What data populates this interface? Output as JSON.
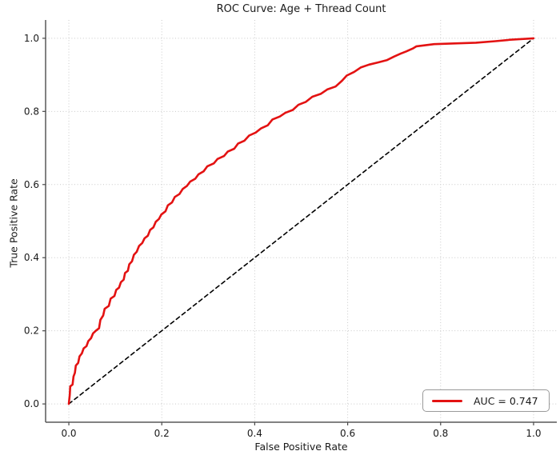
{
  "figure": {
    "background": "#ffffff"
  },
  "colors": {
    "spine": "#595959",
    "tick": "#4a4a4a",
    "text": "#1a1a1a",
    "grid": "#c9c9c9",
    "legend_border": "#9a9a9a"
  },
  "chart_data": {
    "type": "line",
    "title": "ROC Curve: Age + Thread Count",
    "xlabel": "False Positive Rate",
    "ylabel": "True Positive Rate",
    "xlim": [
      -0.05,
      1.05
    ],
    "ylim": [
      -0.05,
      1.05
    ],
    "xticks": [
      0,
      0.2,
      0.4,
      0.6,
      0.8,
      1.0
    ],
    "xtick_labels": [
      "0.0",
      "0.2",
      "0.4",
      "0.6",
      "0.8",
      "1.0"
    ],
    "yticks": [
      0,
      0.2,
      0.4,
      0.6,
      0.8,
      1.0
    ],
    "ytick_labels": [
      "0.0",
      "0.2",
      "0.4",
      "0.6",
      "0.8",
      "1.0"
    ],
    "grid": {
      "on": true,
      "linestyle": "dotted",
      "color": "#c9c9c9"
    },
    "auc": 0.747,
    "legend": {
      "position": "lower-right",
      "entries": [
        {
          "label": "AUC = 0.747",
          "color": "#e31212",
          "linestyle": "solid"
        }
      ]
    },
    "series": [
      {
        "name": "roc-curve",
        "color": "#e31212",
        "linestyle": "solid",
        "linewidth": 2.6,
        "points": [
          [
            0.0,
            0.0
          ],
          [
            0.002,
            0.025
          ],
          [
            0.003,
            0.048
          ],
          [
            0.008,
            0.053
          ],
          [
            0.01,
            0.075
          ],
          [
            0.013,
            0.085
          ],
          [
            0.015,
            0.105
          ],
          [
            0.02,
            0.112
          ],
          [
            0.023,
            0.13
          ],
          [
            0.028,
            0.138
          ],
          [
            0.032,
            0.152
          ],
          [
            0.038,
            0.158
          ],
          [
            0.042,
            0.172
          ],
          [
            0.048,
            0.18
          ],
          [
            0.052,
            0.193
          ],
          [
            0.058,
            0.2
          ],
          [
            0.065,
            0.207
          ],
          [
            0.068,
            0.23
          ],
          [
            0.074,
            0.242
          ],
          [
            0.077,
            0.26
          ],
          [
            0.086,
            0.268
          ],
          [
            0.09,
            0.288
          ],
          [
            0.098,
            0.295
          ],
          [
            0.102,
            0.312
          ],
          [
            0.108,
            0.318
          ],
          [
            0.112,
            0.333
          ],
          [
            0.118,
            0.34
          ],
          [
            0.121,
            0.358
          ],
          [
            0.127,
            0.364
          ],
          [
            0.13,
            0.382
          ],
          [
            0.136,
            0.39
          ],
          [
            0.14,
            0.408
          ],
          [
            0.146,
            0.416
          ],
          [
            0.151,
            0.432
          ],
          [
            0.158,
            0.44
          ],
          [
            0.163,
            0.453
          ],
          [
            0.17,
            0.46
          ],
          [
            0.175,
            0.476
          ],
          [
            0.182,
            0.483
          ],
          [
            0.187,
            0.498
          ],
          [
            0.194,
            0.506
          ],
          [
            0.199,
            0.518
          ],
          [
            0.208,
            0.527
          ],
          [
            0.213,
            0.543
          ],
          [
            0.222,
            0.551
          ],
          [
            0.228,
            0.566
          ],
          [
            0.238,
            0.574
          ],
          [
            0.245,
            0.588
          ],
          [
            0.254,
            0.596
          ],
          [
            0.261,
            0.608
          ],
          [
            0.272,
            0.616
          ],
          [
            0.279,
            0.628
          ],
          [
            0.29,
            0.636
          ],
          [
            0.298,
            0.65
          ],
          [
            0.312,
            0.658
          ],
          [
            0.32,
            0.67
          ],
          [
            0.334,
            0.678
          ],
          [
            0.342,
            0.69
          ],
          [
            0.356,
            0.698
          ],
          [
            0.364,
            0.712
          ],
          [
            0.378,
            0.72
          ],
          [
            0.388,
            0.734
          ],
          [
            0.402,
            0.742
          ],
          [
            0.414,
            0.754
          ],
          [
            0.428,
            0.762
          ],
          [
            0.438,
            0.778
          ],
          [
            0.454,
            0.786
          ],
          [
            0.466,
            0.796
          ],
          [
            0.482,
            0.804
          ],
          [
            0.494,
            0.818
          ],
          [
            0.51,
            0.826
          ],
          [
            0.524,
            0.84
          ],
          [
            0.542,
            0.848
          ],
          [
            0.556,
            0.86
          ],
          [
            0.574,
            0.868
          ],
          [
            0.588,
            0.884
          ],
          [
            0.598,
            0.898
          ],
          [
            0.614,
            0.908
          ],
          [
            0.628,
            0.92
          ],
          [
            0.646,
            0.928
          ],
          [
            0.666,
            0.934
          ],
          [
            0.684,
            0.94
          ],
          [
            0.7,
            0.95
          ],
          [
            0.714,
            0.958
          ],
          [
            0.726,
            0.964
          ],
          [
            0.74,
            0.972
          ],
          [
            0.748,
            0.978
          ],
          [
            0.786,
            0.984
          ],
          [
            0.83,
            0.986
          ],
          [
            0.876,
            0.988
          ],
          [
            0.918,
            0.992
          ],
          [
            0.95,
            0.996
          ],
          [
            1.0,
            1.0
          ]
        ]
      },
      {
        "name": "chance-diagonal",
        "color": "#000000",
        "linestyle": "dashed",
        "linewidth": 1.6,
        "points": [
          [
            0.0,
            0.0
          ],
          [
            1.0,
            1.0
          ]
        ]
      }
    ]
  }
}
